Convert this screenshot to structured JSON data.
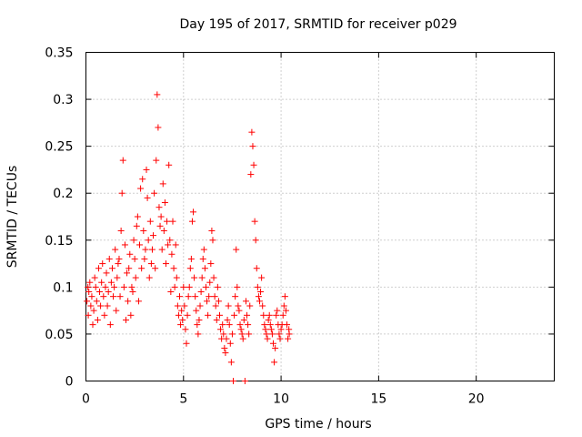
{
  "chart_data": {
    "type": "scatter",
    "title": "Day 195 of 2017, SRMTID for receiver p029",
    "xlabel": "GPS time / hours",
    "ylabel": "SRMTID / TECUs",
    "xlim": [
      0,
      24
    ],
    "ylim": [
      0,
      0.35
    ],
    "xticks": [
      0,
      5,
      10,
      15,
      20
    ],
    "yticks": [
      0,
      0.05,
      0.1,
      0.15,
      0.2,
      0.25,
      0.3,
      0.35
    ],
    "xtick_labels": [
      "0",
      "5",
      "10",
      "15",
      "20"
    ],
    "ytick_labels": [
      "0",
      "0.05",
      "0.1",
      "0.15",
      "0.2",
      "0.25",
      "0.3",
      "0.35"
    ],
    "grid": true,
    "marker": "+",
    "color": "#ff0000",
    "series": [
      {
        "name": "p029",
        "points": [
          [
            0.05,
            0.085
          ],
          [
            0.1,
            0.1
          ],
          [
            0.12,
            0.07
          ],
          [
            0.15,
            0.095
          ],
          [
            0.2,
            0.105
          ],
          [
            0.25,
            0.08
          ],
          [
            0.3,
            0.09
          ],
          [
            0.35,
            0.06
          ],
          [
            0.4,
            0.075
          ],
          [
            0.45,
            0.11
          ],
          [
            0.5,
            0.1
          ],
          [
            0.55,
            0.085
          ],
          [
            0.6,
            0.065
          ],
          [
            0.65,
            0.12
          ],
          [
            0.7,
            0.095
          ],
          [
            0.75,
            0.08
          ],
          [
            0.8,
            0.105
          ],
          [
            0.85,
            0.125
          ],
          [
            0.9,
            0.09
          ],
          [
            0.95,
            0.07
          ],
          [
            1.0,
            0.1
          ],
          [
            1.05,
            0.115
          ],
          [
            1.1,
            0.08
          ],
          [
            1.15,
            0.095
          ],
          [
            1.2,
            0.13
          ],
          [
            1.25,
            0.06
          ],
          [
            1.3,
            0.105
          ],
          [
            1.35,
            0.12
          ],
          [
            1.4,
            0.09
          ],
          [
            1.45,
            0.1
          ],
          [
            1.5,
            0.14
          ],
          [
            1.55,
            0.075
          ],
          [
            1.6,
            0.11
          ],
          [
            1.65,
            0.125
          ],
          [
            1.7,
            0.13
          ],
          [
            1.75,
            0.09
          ],
          [
            1.8,
            0.16
          ],
          [
            1.85,
            0.2
          ],
          [
            1.9,
            0.235
          ],
          [
            1.95,
            0.1
          ],
          [
            2.0,
            0.145
          ],
          [
            2.05,
            0.065
          ],
          [
            2.1,
            0.115
          ],
          [
            2.15,
            0.085
          ],
          [
            2.2,
            0.12
          ],
          [
            2.25,
            0.135
          ],
          [
            2.3,
            0.07
          ],
          [
            2.35,
            0.1
          ],
          [
            2.4,
            0.095
          ],
          [
            2.45,
            0.15
          ],
          [
            2.5,
            0.13
          ],
          [
            2.55,
            0.11
          ],
          [
            2.6,
            0.165
          ],
          [
            2.65,
            0.175
          ],
          [
            2.7,
            0.085
          ],
          [
            2.75,
            0.145
          ],
          [
            2.8,
            0.205
          ],
          [
            2.85,
            0.12
          ],
          [
            2.9,
            0.215
          ],
          [
            2.95,
            0.16
          ],
          [
            3.0,
            0.13
          ],
          [
            3.05,
            0.14
          ],
          [
            3.1,
            0.225
          ],
          [
            3.15,
            0.195
          ],
          [
            3.2,
            0.15
          ],
          [
            3.25,
            0.11
          ],
          [
            3.3,
            0.17
          ],
          [
            3.35,
            0.125
          ],
          [
            3.4,
            0.14
          ],
          [
            3.45,
            0.155
          ],
          [
            3.5,
            0.2
          ],
          [
            3.55,
            0.12
          ],
          [
            3.6,
            0.235
          ],
          [
            3.65,
            0.305
          ],
          [
            3.7,
            0.27
          ],
          [
            3.75,
            0.185
          ],
          [
            3.8,
            0.165
          ],
          [
            3.85,
            0.175
          ],
          [
            3.9,
            0.14
          ],
          [
            3.95,
            0.21
          ],
          [
            4.0,
            0.16
          ],
          [
            4.05,
            0.19
          ],
          [
            4.1,
            0.125
          ],
          [
            4.15,
            0.17
          ],
          [
            4.2,
            0.145
          ],
          [
            4.25,
            0.23
          ],
          [
            4.3,
            0.15
          ],
          [
            4.35,
            0.095
          ],
          [
            4.4,
            0.135
          ],
          [
            4.45,
            0.17
          ],
          [
            4.5,
            0.12
          ],
          [
            4.55,
            0.1
          ],
          [
            4.6,
            0.145
          ],
          [
            4.65,
            0.11
          ],
          [
            4.7,
            0.08
          ],
          [
            4.75,
            0.07
          ],
          [
            4.8,
            0.09
          ],
          [
            4.85,
            0.06
          ],
          [
            4.9,
            0.075
          ],
          [
            4.95,
            0.065
          ],
          [
            5.0,
            0.1
          ],
          [
            5.05,
            0.08
          ],
          [
            5.1,
            0.055
          ],
          [
            5.15,
            0.04
          ],
          [
            5.2,
            0.07
          ],
          [
            5.25,
            0.09
          ],
          [
            5.3,
            0.1
          ],
          [
            5.35,
            0.12
          ],
          [
            5.4,
            0.13
          ],
          [
            5.45,
            0.17
          ],
          [
            5.5,
            0.18
          ],
          [
            5.55,
            0.11
          ],
          [
            5.6,
            0.09
          ],
          [
            5.65,
            0.075
          ],
          [
            5.7,
            0.06
          ],
          [
            5.75,
            0.05
          ],
          [
            5.8,
            0.065
          ],
          [
            5.85,
            0.08
          ],
          [
            5.9,
            0.095
          ],
          [
            5.95,
            0.11
          ],
          [
            6.0,
            0.13
          ],
          [
            6.05,
            0.14
          ],
          [
            6.1,
            0.12
          ],
          [
            6.15,
            0.1
          ],
          [
            6.2,
            0.085
          ],
          [
            6.25,
            0.07
          ],
          [
            6.3,
            0.09
          ],
          [
            6.35,
            0.105
          ],
          [
            6.4,
            0.125
          ],
          [
            6.45,
            0.16
          ],
          [
            6.5,
            0.15
          ],
          [
            6.55,
            0.11
          ],
          [
            6.6,
            0.09
          ],
          [
            6.65,
            0.08
          ],
          [
            6.7,
            0.065
          ],
          [
            6.75,
            0.1
          ],
          [
            6.8,
            0.085
          ],
          [
            6.85,
            0.07
          ],
          [
            6.9,
            0.055
          ],
          [
            6.95,
            0.045
          ],
          [
            7.0,
            0.06
          ],
          [
            7.05,
            0.05
          ],
          [
            7.1,
            0.035
          ],
          [
            7.15,
            0.03
          ],
          [
            7.2,
            0.045
          ],
          [
            7.25,
            0.065
          ],
          [
            7.3,
            0.08
          ],
          [
            7.35,
            0.06
          ],
          [
            7.4,
            0.04
          ],
          [
            7.45,
            0.02
          ],
          [
            7.5,
            0.05
          ],
          [
            7.55,
            0.0
          ],
          [
            7.6,
            0.07
          ],
          [
            7.65,
            0.09
          ],
          [
            7.7,
            0.14
          ],
          [
            7.75,
            0.1
          ],
          [
            7.8,
            0.08
          ],
          [
            7.85,
            0.075
          ],
          [
            7.9,
            0.06
          ],
          [
            7.95,
            0.055
          ],
          [
            8.0,
            0.05
          ],
          [
            8.05,
            0.045
          ],
          [
            8.1,
            0.065
          ],
          [
            8.15,
            0.0
          ],
          [
            8.2,
            0.085
          ],
          [
            8.25,
            0.07
          ],
          [
            8.3,
            0.06
          ],
          [
            8.35,
            0.05
          ],
          [
            8.4,
            0.08
          ],
          [
            8.45,
            0.22
          ],
          [
            8.5,
            0.265
          ],
          [
            8.55,
            0.25
          ],
          [
            8.6,
            0.23
          ],
          [
            8.65,
            0.17
          ],
          [
            8.7,
            0.15
          ],
          [
            8.75,
            0.12
          ],
          [
            8.8,
            0.1
          ],
          [
            8.85,
            0.09
          ],
          [
            8.9,
            0.085
          ],
          [
            8.95,
            0.095
          ],
          [
            9.0,
            0.11
          ],
          [
            9.05,
            0.08
          ],
          [
            9.1,
            0.07
          ],
          [
            9.15,
            0.06
          ],
          [
            9.2,
            0.055
          ],
          [
            9.25,
            0.05
          ],
          [
            9.3,
            0.045
          ],
          [
            9.35,
            0.065
          ],
          [
            9.4,
            0.07
          ],
          [
            9.45,
            0.06
          ],
          [
            9.5,
            0.055
          ],
          [
            9.55,
            0.05
          ],
          [
            9.6,
            0.04
          ],
          [
            9.65,
            0.02
          ],
          [
            9.7,
            0.035
          ],
          [
            9.75,
            0.07
          ],
          [
            9.8,
            0.075
          ],
          [
            9.85,
            0.06
          ],
          [
            9.9,
            0.05
          ],
          [
            9.95,
            0.045
          ],
          [
            10.0,
            0.055
          ],
          [
            10.05,
            0.06
          ],
          [
            10.1,
            0.07
          ],
          [
            10.15,
            0.08
          ],
          [
            10.2,
            0.09
          ],
          [
            10.25,
            0.075
          ],
          [
            10.3,
            0.06
          ],
          [
            10.35,
            0.045
          ],
          [
            10.4,
            0.055
          ],
          [
            10.42,
            0.05
          ]
        ]
      }
    ]
  }
}
